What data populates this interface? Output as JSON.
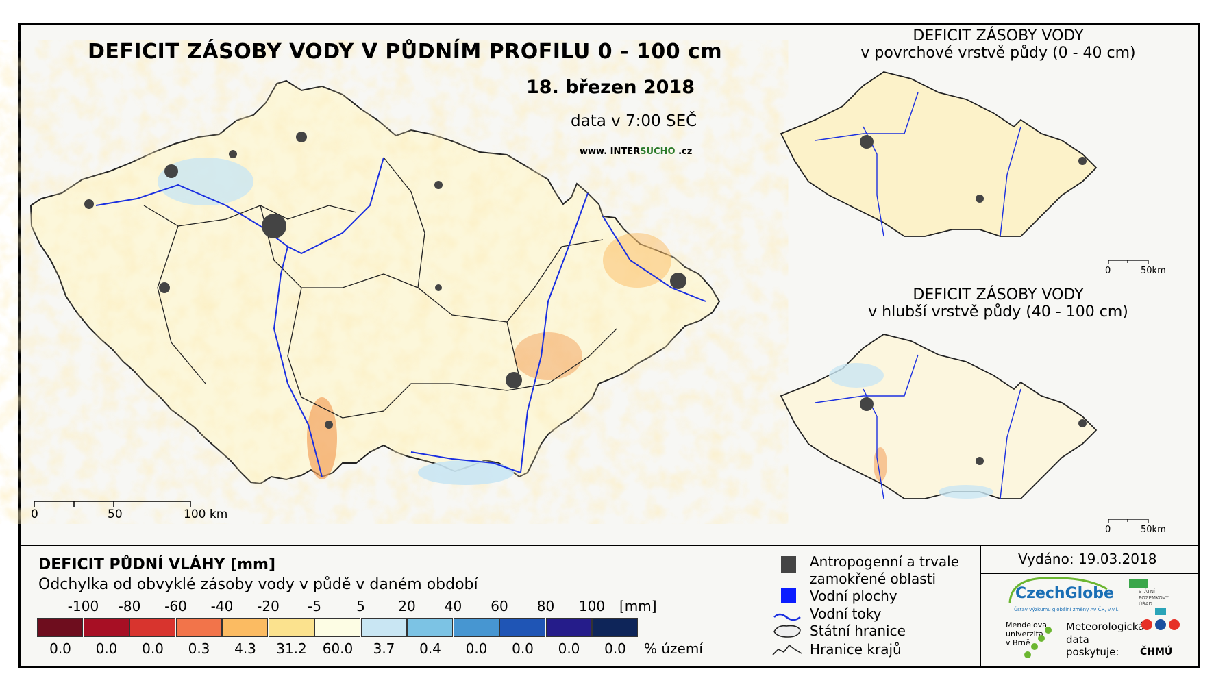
{
  "title": "DEFICIT ZÁSOBY VODY V PŮDNÍM PROFILU 0 - 100 cm",
  "date": "18. březen 2018",
  "data_time": "data v 7:00 SEČ",
  "website": {
    "prefix": "www. ",
    "inter": "INTER",
    "sucho": "SUCHO",
    "suffix": " .cz"
  },
  "inset_top": {
    "line1": "DEFICIT ZÁSOBY VODY",
    "line2": "v povrchové vrstvě půdy (0 - 40 cm)"
  },
  "inset_bottom": {
    "line1": "DEFICIT ZÁSOBY VODY",
    "line2": "v hlubší vrstvě půdy (40 - 100 cm)"
  },
  "main_scale": {
    "labels": [
      "0",
      "50",
      "100 km"
    ]
  },
  "inset_scale": {
    "labels": [
      "0",
      "50km"
    ]
  },
  "legend": {
    "title": "DEFICIT PŮDNÍ VLÁHY [mm]",
    "subtitle": "Odchylka od obvyklé zásoby vody v půdě v daném období",
    "thresholds": [
      "-100",
      "-80",
      "-60",
      "-40",
      "-20",
      "-5",
      "5",
      "20",
      "40",
      "60",
      "80",
      "100"
    ],
    "unit": "[mm]",
    "colors": [
      "#6e0d1e",
      "#a70f24",
      "#d8342e",
      "#f2744a",
      "#fbbb62",
      "#fbe28e",
      "#fdfde4",
      "#c9e6f3",
      "#7cc3e4",
      "#4796d1",
      "#1f55b5",
      "#251c8a",
      "#0e2559"
    ],
    "percents": [
      "0.0",
      "0.0",
      "0.0",
      "0.3",
      "4.3",
      "31.2",
      "60.0",
      "3.7",
      "0.4",
      "0.0",
      "0.0",
      "0.0",
      "0.0"
    ],
    "percent_unit": "% území"
  },
  "map_legend": {
    "anthropogenic": "Antropogenní a trvale",
    "anthropogenic2": "zamokřené oblasti",
    "water_bodies": "Vodní plochy",
    "rivers": "Vodní toky",
    "state_border": "Státní hranice",
    "region_border": "Hranice krajů"
  },
  "issued": "Vydáno: 19.03.2018",
  "providers": {
    "czechglobe": "CzechGlobe",
    "czechglobe_sub": "Ústav výzkumu globální změny AV ČR, v.v.i.",
    "mendel1": "Mendelova",
    "mendel2": "univerzita",
    "mendel3": "v Brně",
    "spu1": "STÁTNÍ",
    "spu2": "POZEMKOVÝ",
    "spu3": "ÚŘAD",
    "meteo1": "Meteorologická",
    "meteo2": "data",
    "meteo3": "poskytuje:",
    "chmu": "ČHMÚ"
  }
}
